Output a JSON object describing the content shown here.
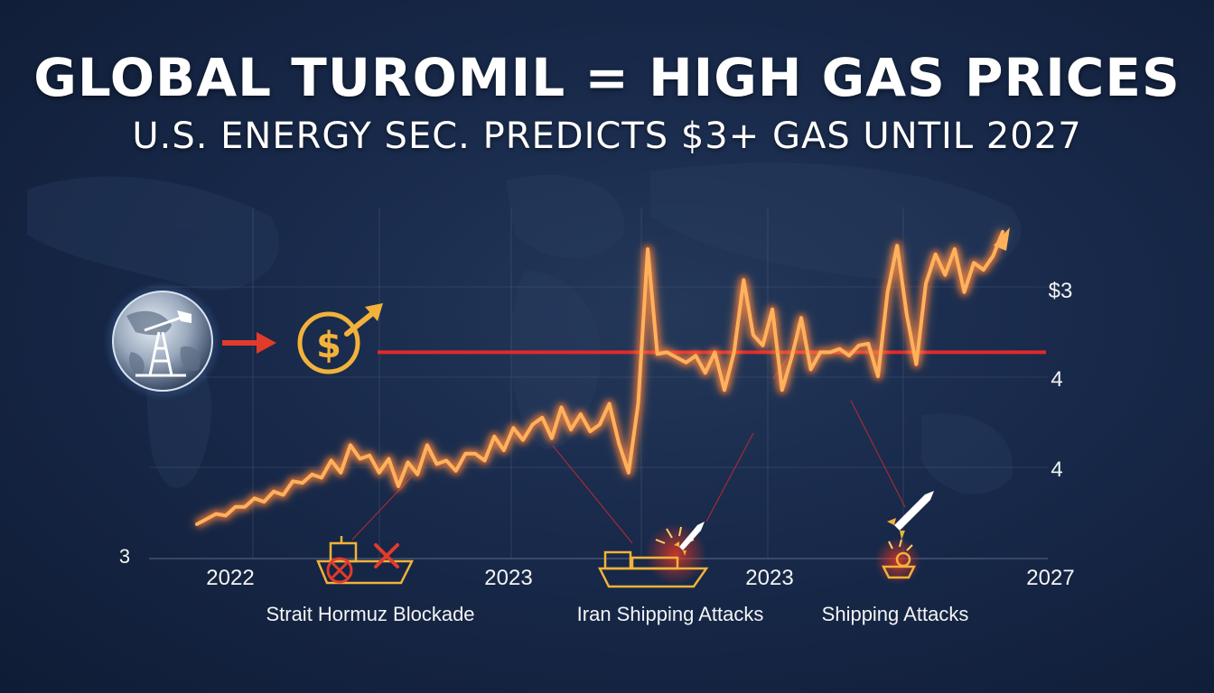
{
  "title": "GLOBAL TUROMIL = HIGH GAS PRICES",
  "subtitle": "U.S. ENERGY SEC. PREDICTS $3+ GAS UNTIL 2027",
  "colors": {
    "line": "#ffb15c",
    "glow": "#ff5a1e",
    "threshold": "#e1292b",
    "gold": "#f2b23a",
    "icon_red": "#e23b2b"
  },
  "icons": {
    "globe": "globe-oil-derrick-icon",
    "arrow": "red-arrow-icon",
    "dollar": "dollar-up-arrow-icon"
  },
  "chart_data": {
    "type": "line",
    "series": [
      {
        "values": [
          3.0,
          3.03,
          3.06,
          3.05,
          3.1,
          3.1,
          3.15,
          3.13,
          3.19,
          3.17,
          3.25,
          3.24,
          3.29,
          3.27,
          3.37,
          3.3,
          3.46,
          3.38,
          3.4,
          3.3,
          3.38,
          3.22,
          3.36,
          3.29,
          3.46,
          3.35,
          3.37,
          3.31,
          3.41,
          3.41,
          3.37,
          3.51,
          3.43,
          3.56,
          3.49,
          3.58,
          3.62,
          3.5,
          3.68,
          3.55,
          3.64,
          3.54,
          3.58,
          3.7,
          3.47,
          3.3,
          3.7,
          4.6,
          3.99,
          4.0,
          3.97,
          3.94,
          3.98,
          3.88,
          4.0,
          3.78,
          4.0,
          4.42,
          4.1,
          4.04,
          4.25,
          3.78,
          3.97,
          4.2,
          3.9,
          4.0,
          4.0,
          4.02,
          3.98,
          4.04,
          4.05,
          3.86,
          4.35,
          4.62,
          4.22,
          3.93,
          4.4,
          4.57,
          4.45,
          4.6,
          4.35,
          4.52,
          4.48,
          4.56,
          4.7
        ]
      }
    ],
    "tick_labels_x": [
      "2022",
      "2023",
      "2023",
      "2027"
    ],
    "tick_labels_y": [
      "3",
      "4",
      "4",
      "$3"
    ],
    "threshold_value": 4.0,
    "annotations": [
      "Strait Hormuz Blockade",
      "Iran Shipping Attacks",
      "Shipping Attacks"
    ],
    "xlabel": "",
    "ylabel": "",
    "grid": true,
    "ylim": [
      2.8,
      4.8
    ]
  }
}
